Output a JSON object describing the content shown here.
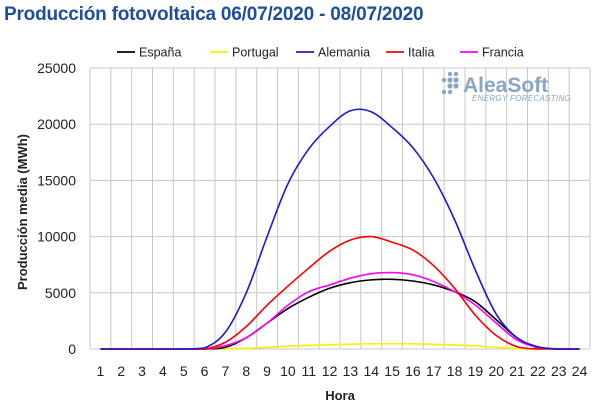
{
  "title": "Producción fotovoltaica 06/07/2020 - 08/07/2020",
  "watermark": {
    "name": "AleaSoft",
    "tagline": "ENERGY FORECASTING"
  },
  "chart_data": {
    "type": "line",
    "title": "Producción fotovoltaica 06/07/2020 - 08/07/2020",
    "xlabel": "Hora",
    "ylabel": "Producción media (MWh)",
    "x": [
      1,
      2,
      3,
      4,
      5,
      6,
      7,
      8,
      9,
      10,
      11,
      12,
      13,
      14,
      15,
      16,
      17,
      18,
      19,
      20,
      21,
      22,
      23,
      24
    ],
    "ylim": [
      0,
      25000
    ],
    "yticks": [
      0,
      5000,
      10000,
      15000,
      20000,
      25000
    ],
    "grid": true,
    "legend_position": "top",
    "series": [
      {
        "name": "España",
        "color": "#000000",
        "values": [
          0,
          0,
          0,
          0,
          0,
          0,
          150,
          1000,
          2300,
          3600,
          4600,
          5400,
          5900,
          6150,
          6200,
          6050,
          5700,
          5100,
          4200,
          2600,
          1000,
          100,
          0,
          0
        ]
      },
      {
        "name": "Portugal",
        "color": "#ffee00",
        "values": [
          0,
          0,
          0,
          0,
          0,
          0,
          10,
          60,
          150,
          250,
          320,
          380,
          430,
          460,
          470,
          460,
          420,
          360,
          280,
          160,
          40,
          0,
          0,
          0
        ]
      },
      {
        "name": "Alemania",
        "color": "#1a1ad6",
        "values": [
          0,
          0,
          0,
          0,
          0,
          100,
          1500,
          5000,
          10000,
          14700,
          17800,
          19800,
          21200,
          21100,
          19700,
          17900,
          15200,
          11500,
          7000,
          3100,
          1000,
          200,
          0,
          0
        ]
      },
      {
        "name": "Italia",
        "color": "#ff0000",
        "values": [
          0,
          0,
          0,
          0,
          0,
          0,
          600,
          2000,
          3900,
          5600,
          7200,
          8700,
          9700,
          10000,
          9500,
          8800,
          7400,
          5400,
          3000,
          1200,
          200,
          0,
          0,
          0
        ]
      },
      {
        "name": "Francia",
        "color": "#ff00ff",
        "values": [
          0,
          0,
          0,
          0,
          0,
          0,
          300,
          1000,
          2300,
          3900,
          5100,
          5700,
          6300,
          6700,
          6800,
          6600,
          6000,
          5100,
          3900,
          2300,
          800,
          150,
          0,
          0
        ]
      }
    ]
  }
}
